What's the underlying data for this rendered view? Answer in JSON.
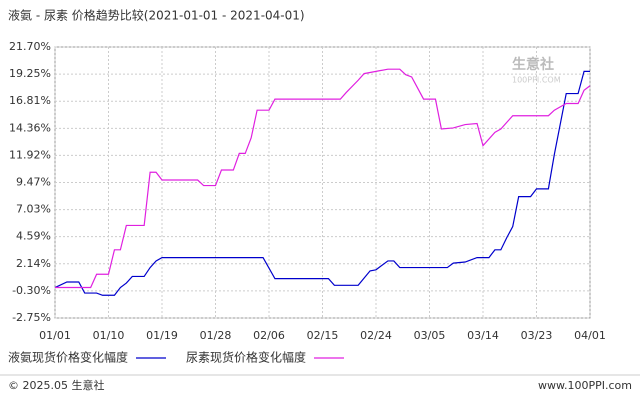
{
  "chart_data": {
    "type": "line",
    "title": "液氨 - 尿素 价格趋势比较(2021-01-01 - 2021-04-01)",
    "series": [
      {
        "name": "液氨现货价格变化幅度",
        "color": "#0000cc",
        "x": [
          "01/01",
          "01/03",
          "01/05",
          "01/06",
          "01/08",
          "01/09",
          "01/11",
          "01/12",
          "01/13",
          "01/14",
          "01/16",
          "01/17",
          "01/18",
          "01/19",
          "02/05",
          "02/07",
          "02/16",
          "02/17",
          "02/21",
          "02/23",
          "02/24",
          "02/26",
          "02/27",
          "02/28",
          "03/08",
          "03/09",
          "03/11",
          "03/13",
          "03/15",
          "03/16",
          "03/17",
          "03/18",
          "03/19",
          "03/20",
          "03/22",
          "03/23",
          "03/25",
          "03/26",
          "03/28",
          "03/30",
          "03/31",
          "04/01"
        ],
        "values": [
          0,
          0.5,
          0.5,
          -0.5,
          -0.5,
          -0.7,
          -0.7,
          0.0,
          0.4,
          1.0,
          1.0,
          1.8,
          2.4,
          2.7,
          2.7,
          0.8,
          0.8,
          0.2,
          0.2,
          1.5,
          1.6,
          2.4,
          2.4,
          1.8,
          1.8,
          2.2,
          2.3,
          2.7,
          2.7,
          3.4,
          3.4,
          4.5,
          5.5,
          8.2,
          8.2,
          8.9,
          8.9,
          12.0,
          17.5,
          17.5,
          19.5,
          19.5
        ]
      },
      {
        "name": "尿素现货价格变化幅度",
        "color": "#e020e0",
        "x": [
          "01/01",
          "01/07",
          "01/08",
          "01/10",
          "01/11",
          "01/12",
          "01/13",
          "01/16",
          "01/17",
          "01/18",
          "01/19",
          "01/25",
          "01/26",
          "01/28",
          "01/29",
          "01/31",
          "02/01",
          "02/02",
          "02/03",
          "02/04",
          "02/06",
          "02/07",
          "02/18",
          "02/19",
          "02/21",
          "02/22",
          "02/24",
          "02/26",
          "02/28",
          "03/01",
          "03/02",
          "03/04",
          "03/06",
          "03/07",
          "03/09",
          "03/11",
          "03/13",
          "03/14",
          "03/16",
          "03/17",
          "03/19",
          "03/25",
          "03/26",
          "03/28",
          "03/30",
          "03/31",
          "04/01"
        ],
        "values": [
          0,
          0,
          1.2,
          1.2,
          3.4,
          3.4,
          5.6,
          5.6,
          10.4,
          10.4,
          9.7,
          9.7,
          9.2,
          9.2,
          10.6,
          10.6,
          12.1,
          12.1,
          13.5,
          16.0,
          16.0,
          17.0,
          17.0,
          17.6,
          18.7,
          19.3,
          19.5,
          19.7,
          19.7,
          19.2,
          19.0,
          17.0,
          17.0,
          14.3,
          14.4,
          14.7,
          14.8,
          12.8,
          14.0,
          14.3,
          15.5,
          15.5,
          16.0,
          16.6,
          16.6,
          17.8,
          18.2
        ]
      }
    ],
    "xticks": [
      "01/01",
      "01/10",
      "01/19",
      "01/28",
      "02/06",
      "02/15",
      "02/24",
      "03/05",
      "03/14",
      "03/23",
      "04/01"
    ],
    "xlim": [
      "01/01",
      "04/01"
    ],
    "ylim": [
      -2.75,
      21.7
    ],
    "yticks": [
      {
        "value": -2.75,
        "label": "-2.75%"
      },
      {
        "value": -0.3,
        "label": "-0.30%"
      },
      {
        "value": 2.14,
        "label": "2.14%"
      },
      {
        "value": 4.59,
        "label": "4.59%"
      },
      {
        "value": 7.03,
        "label": "7.03%"
      },
      {
        "value": 9.47,
        "label": "9.47%"
      },
      {
        "value": 11.92,
        "label": "11.92%"
      },
      {
        "value": 14.36,
        "label": "14.36%"
      },
      {
        "value": 16.81,
        "label": "16.81%"
      },
      {
        "value": 19.25,
        "label": "19.25%"
      },
      {
        "value": 21.7,
        "label": "21.70%"
      }
    ],
    "grid": true,
    "watermark": "生意社",
    "watermark_sub": "100PPI.COM",
    "footer_left": "© 2025.05 生意社",
    "footer_right": "www.100PPI.com"
  }
}
